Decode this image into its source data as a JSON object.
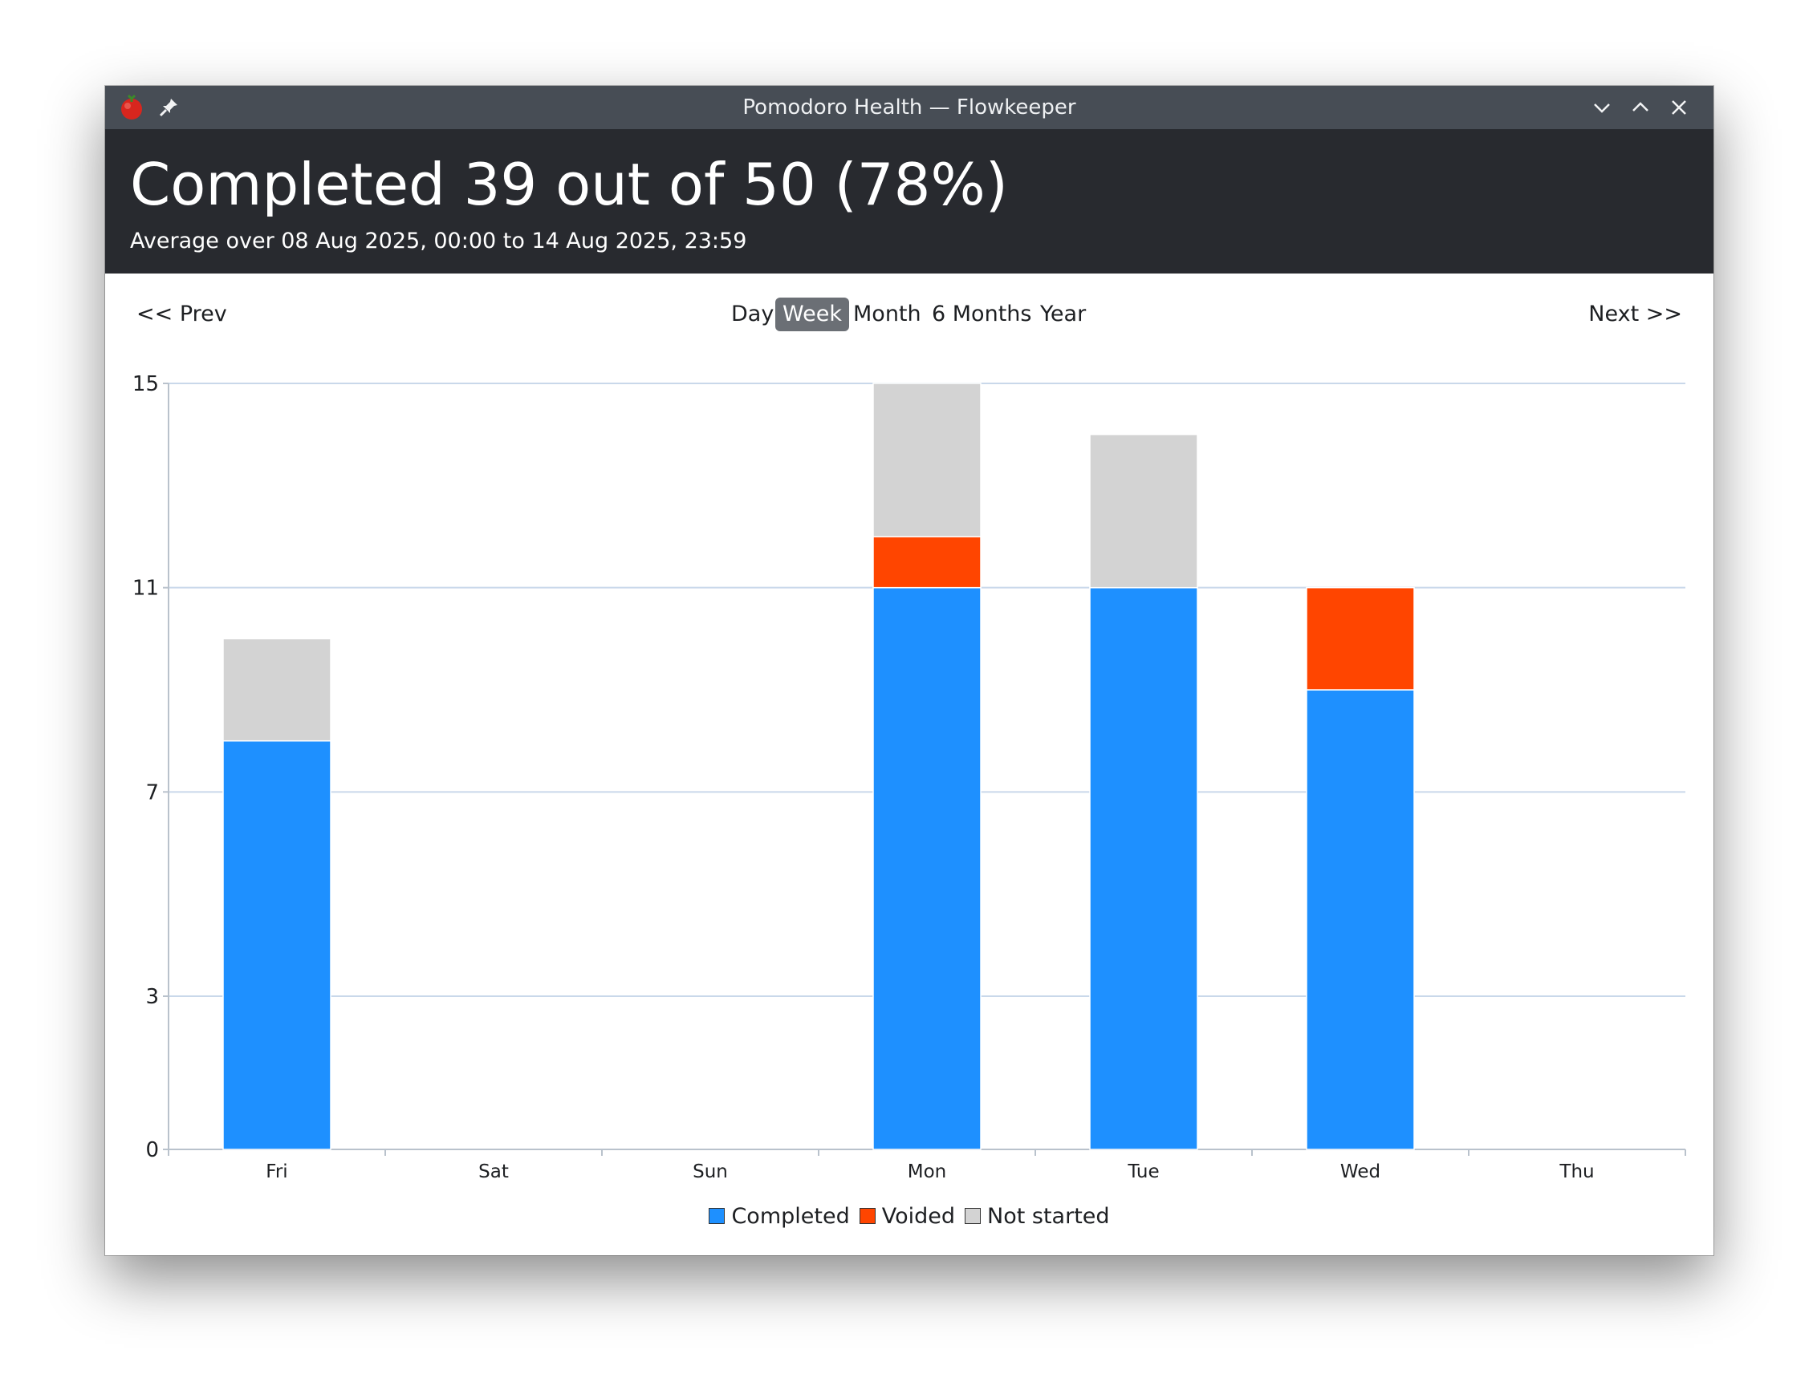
{
  "window": {
    "title": "Pomodoro Health — Flowkeeper",
    "app_icon": "tomato-icon",
    "pin_icon": "pin-icon",
    "controls": [
      "minimize-icon",
      "maximize-icon",
      "close-icon"
    ]
  },
  "header": {
    "headline": "Completed 39 out of 50 (78%)",
    "subline": "Average over 08 Aug 2025, 00:00 to 14 Aug 2025, 23:59"
  },
  "nav": {
    "prev": "<< Prev",
    "next": "Next >>",
    "periods": [
      "Day",
      "Week",
      "Month",
      "6 Months",
      "Year"
    ],
    "active_period": "Week"
  },
  "colors": {
    "completed": "#1e90ff",
    "voided": "#ff4500",
    "not_started": "#d3d3d3",
    "gridline": "#c9d8ea"
  },
  "chart_data": {
    "type": "bar",
    "stacked": true,
    "categories": [
      "Fri",
      "Sat",
      "Sun",
      "Mon",
      "Tue",
      "Wed",
      "Thu"
    ],
    "series": [
      {
        "name": "Completed",
        "color": "#1e90ff",
        "values": [
          8,
          0,
          0,
          11,
          11,
          9,
          0
        ]
      },
      {
        "name": "Voided",
        "color": "#ff4500",
        "values": [
          0,
          0,
          0,
          1,
          0,
          2,
          0
        ]
      },
      {
        "name": "Not started",
        "color": "#d3d3d3",
        "values": [
          2,
          0,
          0,
          3,
          3,
          0,
          0
        ]
      }
    ],
    "yticks": [
      "15",
      "11",
      "7",
      "3",
      "0"
    ],
    "ylim": [
      0,
      15
    ],
    "grid": true,
    "legend": "bottom"
  }
}
